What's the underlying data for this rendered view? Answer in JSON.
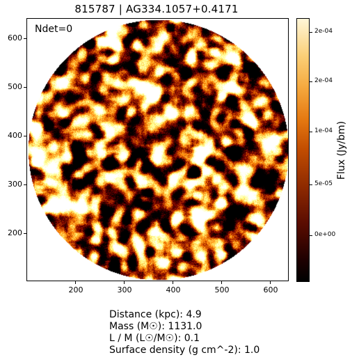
{
  "title": "815787 | AG334.1057+0.4171",
  "ndet": "Ndet=0",
  "x_ticks": [
    "200",
    "300",
    "400",
    "500",
    "600"
  ],
  "y_ticks": [
    "600",
    "500",
    "400",
    "300",
    "200"
  ],
  "colorbar": {
    "label": "Flux (Jy/bm)",
    "ticks": [
      "2e-04",
      "2e-04",
      "1e-04",
      "5e-05",
      "0e+00"
    ],
    "colormap": "afmhot"
  },
  "info": {
    "distance": "Distance (kpc): 4.9",
    "mass": "Mass (M☉): 1131.0",
    "lm": "L / M (L☉/M☉): 0.1",
    "surface_density": "Surface density (g cm^-2): 1.0"
  }
}
